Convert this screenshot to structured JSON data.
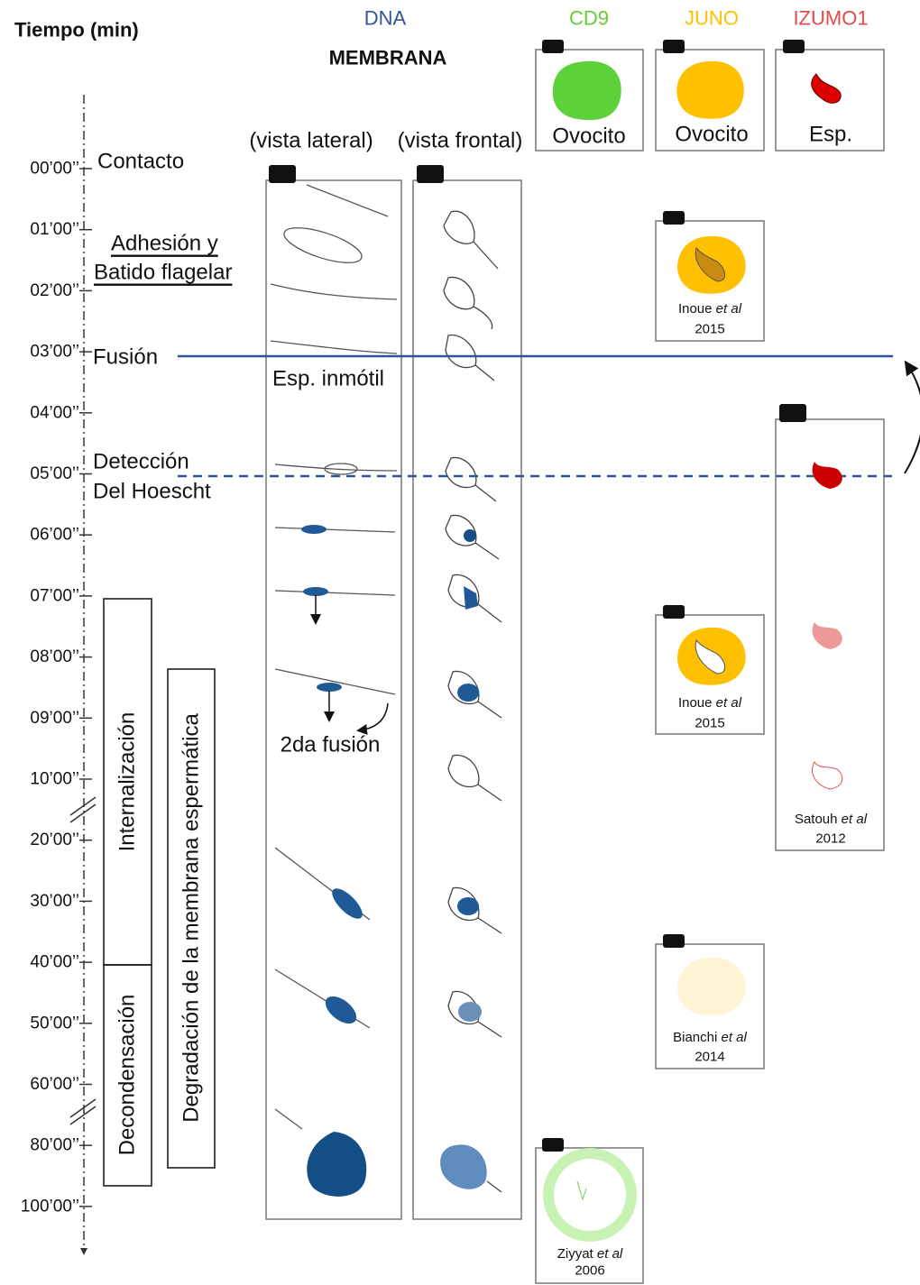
{
  "header": {
    "time_label": "Tiempo (min)",
    "dna": "DNA",
    "membrane": "MEMBRANA",
    "cd9": "CD9",
    "juno": "JUNO",
    "izumo1": "IZUMO1"
  },
  "views": {
    "lateral": "(vista lateral)",
    "frontal": "(vista frontal)"
  },
  "panels": {
    "cd9": "Ovocito",
    "juno": "Ovocito",
    "izumo1": "Esp."
  },
  "timeline": {
    "ticks": [
      "00’00’’",
      "01’00’’",
      "02’00’’",
      "03’00’’",
      "04’00’’",
      "05’00’’",
      "06’00’’",
      "07’00’’",
      "08’00’’",
      "09’00’’",
      "10’00’’",
      "20’00’’",
      "30’00’’",
      "40’00’’",
      "50’00’’",
      "60’00’’",
      "80’00’’",
      "100’00’’"
    ],
    "events": {
      "contact": "Contacto",
      "adhesion": "Adhesión y",
      "beating": "Batido flagelar",
      "fusion": "Fusión",
      "detection": "Detección",
      "hoechst": "Del Hoescht"
    }
  },
  "annotations": {
    "immotile": "Esp. inmótil",
    "second_fusion": "2da fusión"
  },
  "phases": {
    "internalization": "Internalización",
    "decondensation": "Decondensación",
    "degradation": "Degradación de la membrana espermática"
  },
  "references": [
    {
      "author": "Inoue",
      "etal": "et al",
      "year": "2015"
    },
    {
      "author": "Inoue",
      "etal": "et al",
      "year": "2015"
    },
    {
      "author": "Satouh",
      "etal": "et al",
      "year": "2012"
    },
    {
      "author": "Bianchi",
      "etal": "et al",
      "year": "2014"
    },
    {
      "author": "Ziyyat",
      "etal": "et al",
      "year": "2006"
    }
  ]
}
